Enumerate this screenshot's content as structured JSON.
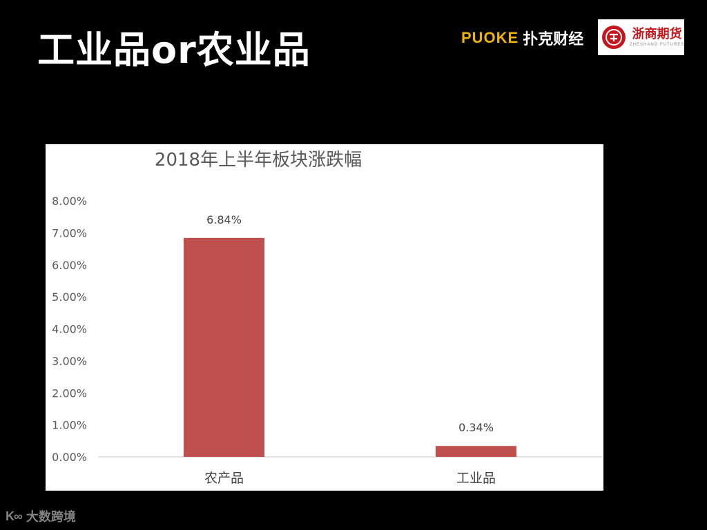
{
  "slide": {
    "title": "工业品or农业品"
  },
  "logos": {
    "puoke_word": "PUOKE",
    "puoke_cn": "扑克财经",
    "zheshang_cn": "浙商期货",
    "zheshang_en": "ZHESHANG FUTURES"
  },
  "watermark": {
    "text": "大数跨境"
  },
  "colors": {
    "background": "#000000",
    "bar": "#c0504d",
    "title_text": "#ffffff",
    "puoke_accent": "#f0b400",
    "zheshang_red": "#c4161c"
  },
  "chart_data": {
    "type": "bar",
    "title": "2018年上半年板块涨跌幅",
    "categories": [
      "农产品",
      "工业品"
    ],
    "values": [
      0.0684,
      0.0034
    ],
    "data_labels": [
      "6.84%",
      "0.34%"
    ],
    "ylim": [
      0,
      0.08
    ],
    "yticks": [
      0,
      0.01,
      0.02,
      0.03,
      0.04,
      0.05,
      0.06,
      0.07,
      0.08
    ],
    "ytick_labels": [
      "0.00%",
      "1.00%",
      "2.00%",
      "3.00%",
      "4.00%",
      "5.00%",
      "6.00%",
      "7.00%",
      "8.00%"
    ],
    "xlabel": "",
    "ylabel": "",
    "grid": false,
    "legend": false
  }
}
